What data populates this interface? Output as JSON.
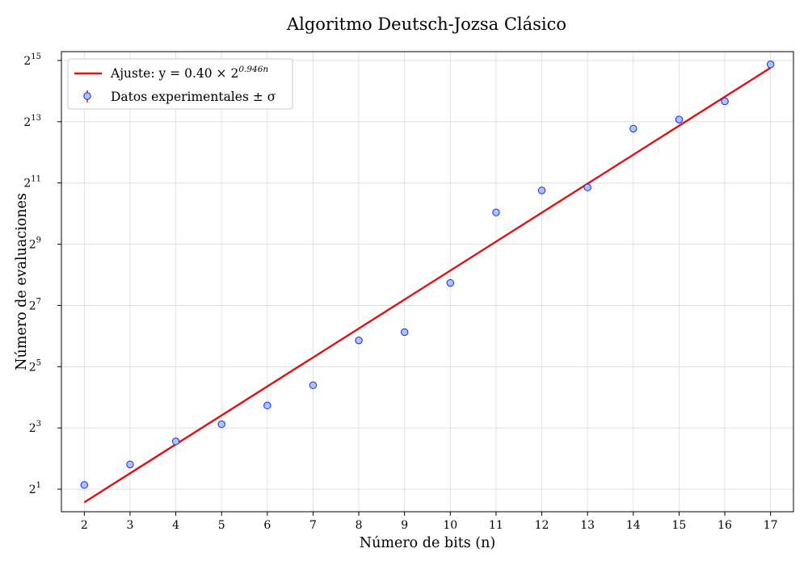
{
  "chart_data": {
    "type": "scatter",
    "title": "Algoritmo Deutsch-Jozsa Clásico",
    "xlabel": "Número de bits (n)",
    "ylabel": "Número de evaluaciones",
    "x_ticks": [
      2,
      3,
      4,
      5,
      6,
      7,
      8,
      9,
      10,
      11,
      12,
      13,
      14,
      15,
      16,
      17
    ],
    "y_scale": "log2",
    "y_tick_exponents": [
      1,
      3,
      5,
      7,
      9,
      11,
      13,
      15
    ],
    "xlim": [
      1.5,
      17.5
    ],
    "ylim": [
      1.2,
      40000
    ],
    "grid": true,
    "legend_position": "top-left",
    "series": [
      {
        "name": "Datos experimentales ± σ",
        "kind": "scatter",
        "color": "#1f1fff",
        "fill": "#a9c6ff",
        "error_color": "#e01010",
        "x": [
          2,
          3,
          4,
          5,
          6,
          7,
          8,
          9,
          10,
          11,
          12,
          13,
          14,
          15,
          16,
          17
        ],
        "y": [
          2.2,
          3.5,
          5.9,
          8.7,
          13.3,
          21.0,
          58,
          70,
          213,
          1050,
          1730,
          1850,
          7000,
          8600,
          13000,
          30000
        ]
      },
      {
        "name": "Ajuste: y = 0.40 × 2^{0.946n}",
        "legend_prefix": "Ajuste: y = 0.40 × 2",
        "legend_exponent": "0.946n",
        "kind": "line",
        "color": "#e01010",
        "a": 0.4,
        "b": 0.946
      }
    ]
  }
}
